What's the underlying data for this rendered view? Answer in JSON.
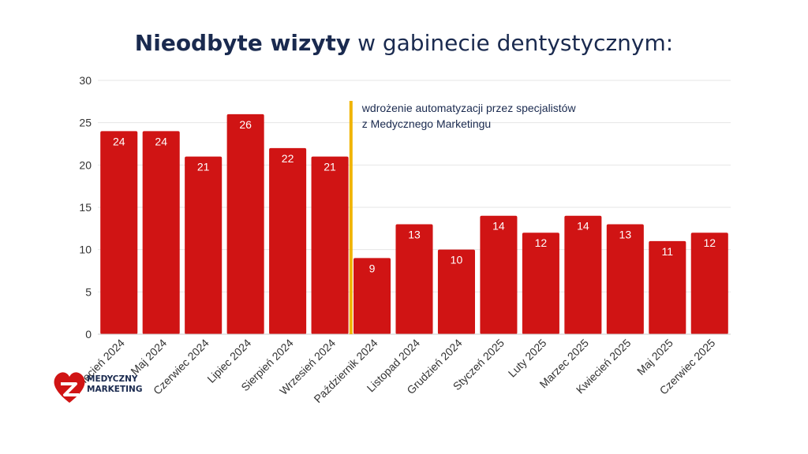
{
  "title": {
    "bold": "Nieodbyte wizyty",
    "rest": "w gabinecie dentystycznym:"
  },
  "chart_data": {
    "type": "bar",
    "categories": [
      "Kwiecień 2024",
      "Maj 2024",
      "Czerwiec 2024",
      "Lipiec 2024",
      "Sierpień 2024",
      "Wrzesień 2024",
      "Październik 2024",
      "Listopad 2024",
      "Grudzień 2024",
      "Styczeń 2025",
      "Luty 2025",
      "Marzec 2025",
      "Kwiecień 2025",
      "Maj 2025",
      "Czerwiec 2025"
    ],
    "values": [
      24,
      24,
      21,
      26,
      22,
      21,
      9,
      13,
      10,
      14,
      12,
      14,
      13,
      11,
      12
    ],
    "ylim": [
      0,
      30
    ],
    "yticks": [
      0,
      5,
      10,
      15,
      20,
      25,
      30
    ],
    "grid": true,
    "bar_color": "#d01414",
    "marker": {
      "after_category": "Wrzesień 2024",
      "color": "#f0b400",
      "label_lines": [
        "wdrożenie automatyzacji przez specjalistów",
        "z Medycznego Marketingu"
      ]
    }
  },
  "logo": {
    "line1": "MEDYCZNY",
    "line2": "MARKETING",
    "heart_color": "#d01414",
    "accent_color": "#1a2a4f"
  }
}
